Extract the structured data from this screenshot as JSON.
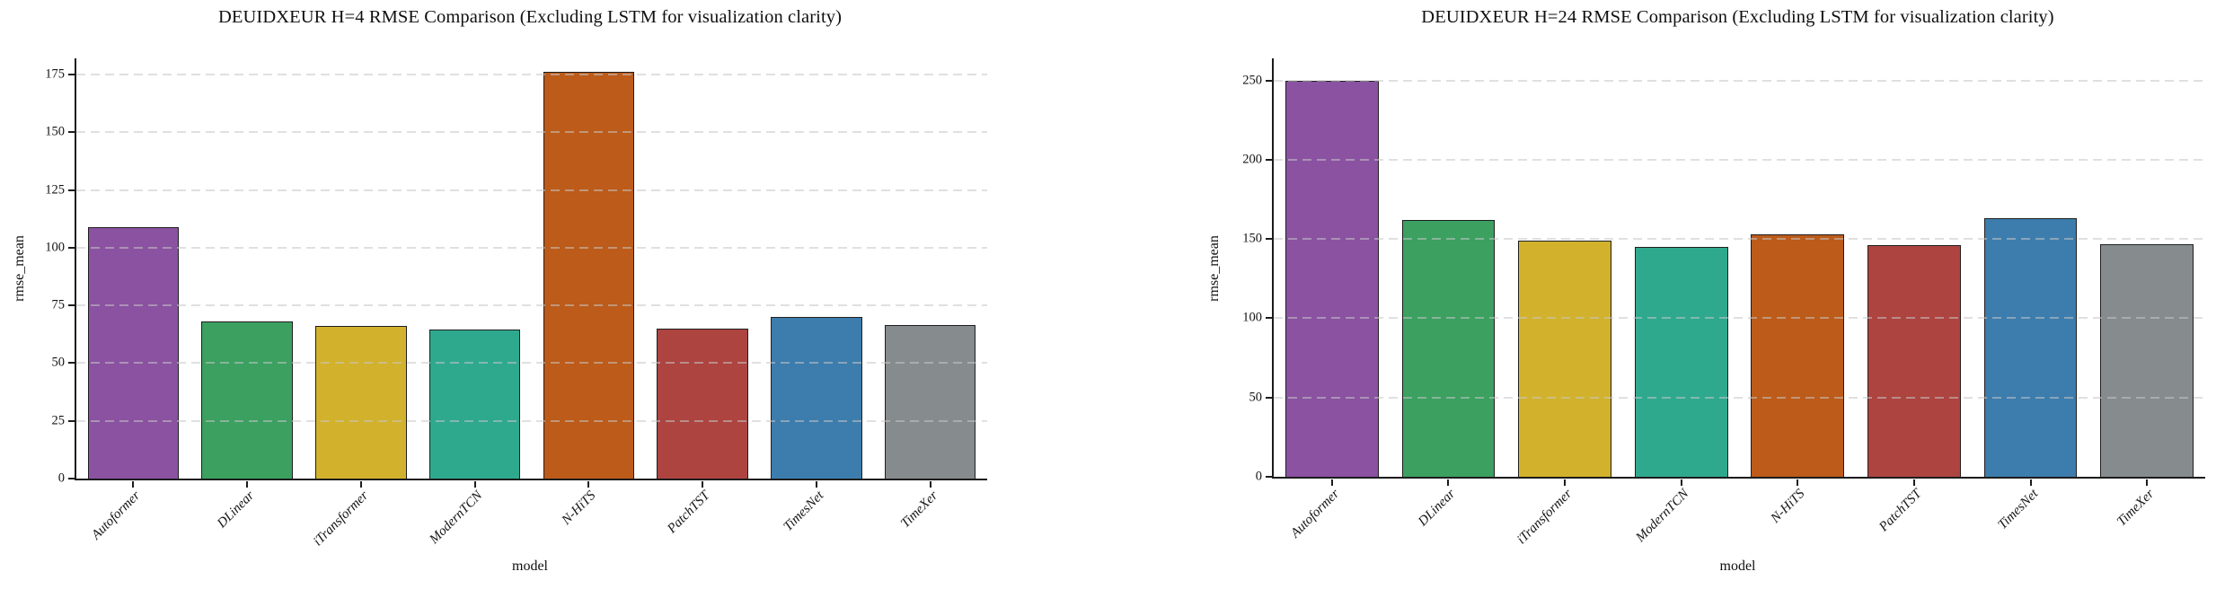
{
  "chart_data": [
    {
      "type": "bar",
      "title": "DEUIDXEUR H=4 RMSE Comparison (Excluding LSTM for visualization clarity)",
      "xlabel": "model",
      "ylabel": "rmse_mean",
      "categories": [
        "Autoformer",
        "DLinear",
        "iTransformer",
        "ModernTCN",
        "N-HiTS",
        "PatchTST",
        "TimesNet",
        "TimeXer"
      ],
      "values": [
        109,
        68,
        66,
        64.5,
        176,
        65,
        70,
        66.5
      ],
      "yticks": [
        0,
        25,
        50,
        75,
        100,
        125,
        150,
        175
      ],
      "ylim": [
        0,
        182
      ],
      "grid": "horizontal-dashed",
      "legend": "none"
    },
    {
      "type": "bar",
      "title": "DEUIDXEUR H=24 RMSE Comparison (Excluding LSTM for visualization clarity)",
      "xlabel": "model",
      "ylabel": "rmse_mean",
      "categories": [
        "Autoformer",
        "DLinear",
        "iTransformer",
        "ModernTCN",
        "N-HiTS",
        "PatchTST",
        "TimesNet",
        "TimeXer"
      ],
      "values": [
        250,
        162,
        149,
        145,
        153,
        146,
        163,
        147
      ],
      "yticks": [
        0,
        50,
        100,
        150,
        200,
        250
      ],
      "ylim": [
        0,
        264
      ],
      "grid": "horizontal-dashed",
      "legend": "none"
    }
  ],
  "style": {
    "bar_colors": [
      "#8a52a1",
      "#3ba060",
      "#d2b22d",
      "#2fa98e",
      "#bc5b1a",
      "#ad4440",
      "#3d7dad",
      "#868c8d"
    ],
    "bar_edge_color": "#1f1f1f",
    "grid_color": "#d9d9d9",
    "axis_color": "#1c1c1c",
    "text_color": "#111111",
    "background": "#ffffff"
  }
}
